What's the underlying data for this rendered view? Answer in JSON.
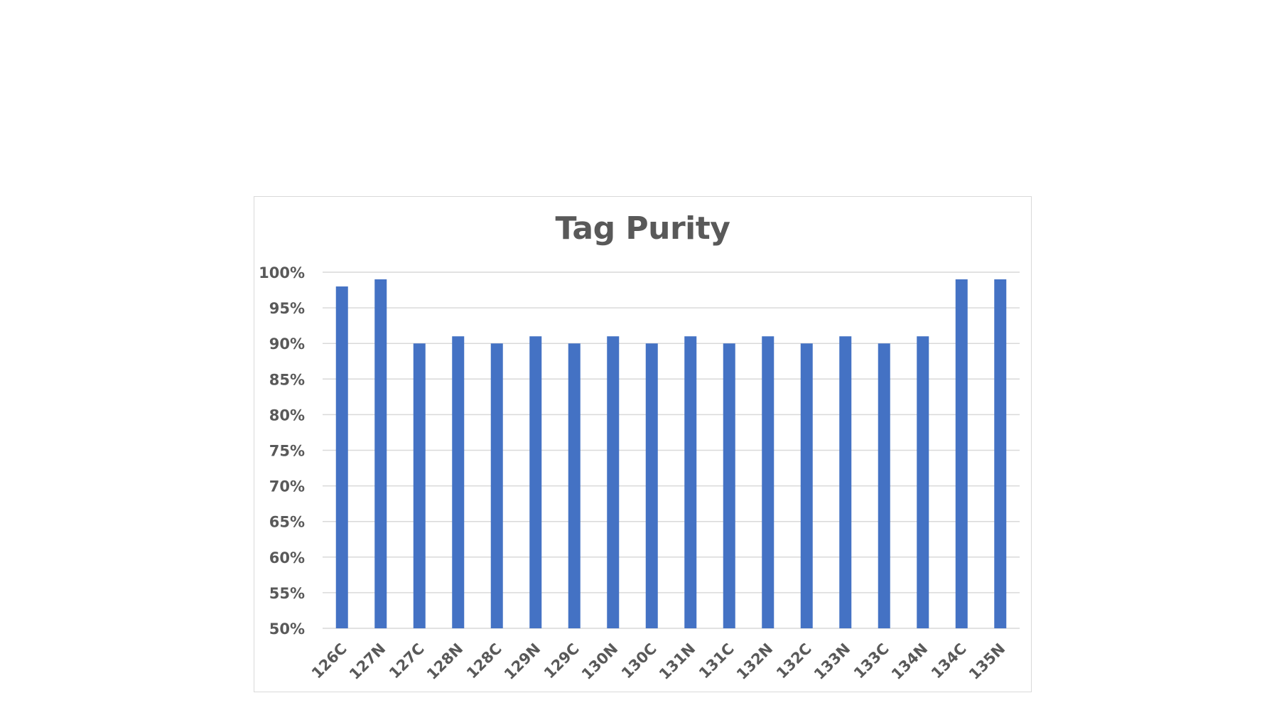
{
  "chart_data": {
    "type": "bar",
    "title": "Tag Purity",
    "xlabel": "",
    "ylabel": "",
    "categories": [
      "126C",
      "127N",
      "127C",
      "128N",
      "128C",
      "129N",
      "129C",
      "130N",
      "130C",
      "131N",
      "131C",
      "132N",
      "132C",
      "133N",
      "133C",
      "134N",
      "134C",
      "135N"
    ],
    "values": [
      98,
      99,
      90,
      91,
      90,
      91,
      90,
      91,
      90,
      91,
      90,
      91,
      90,
      91,
      90,
      91,
      99,
      99
    ],
    "ylim": [
      50,
      100
    ],
    "yticks": [
      50,
      55,
      60,
      65,
      70,
      75,
      80,
      85,
      90,
      95,
      100
    ],
    "ytick_labels": [
      "50%",
      "55%",
      "60%",
      "65%",
      "70%",
      "75%",
      "80%",
      "85%",
      "90%",
      "95%",
      "100%"
    ],
    "grid": true,
    "legend": "none",
    "colors": {
      "bar": "#4472c4",
      "grid": "#d9d9d9",
      "text": "#595959"
    }
  }
}
